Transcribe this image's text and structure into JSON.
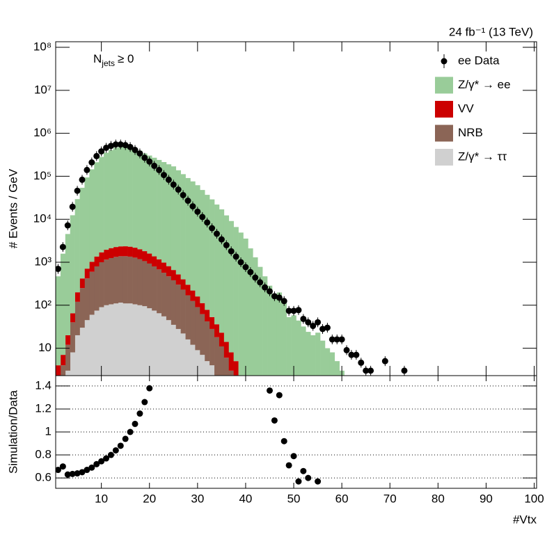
{
  "chart_data": [
    {
      "type": "histogram",
      "lumi_label": "24 fb⁻¹ (13 TeV)",
      "annotation": {
        "text": "N",
        "subscript": "jets",
        "suffix": "≥ 0"
      },
      "y_label": "# Events / GeV",
      "log_y": true,
      "legend": "top-right",
      "xlim": [
        0.5,
        100.5
      ],
      "xticks": [
        10,
        20,
        30,
        40,
        50,
        60,
        70,
        80,
        90,
        100
      ],
      "ylim": [
        2.3,
        135000000
      ],
      "yticks": [
        10,
        {
          "value": 100,
          "label": "10²"
        },
        {
          "value": 1000,
          "label": "10³"
        },
        {
          "value": 10000,
          "label": "10⁴"
        },
        {
          "value": 100000,
          "label": "10⁵"
        },
        {
          "value": 1000000,
          "label": "10⁶"
        },
        {
          "value": 10000000,
          "label": "10⁷"
        },
        {
          "value": 100000000,
          "label": "10⁸"
        }
      ],
      "x": [
        1,
        2,
        3,
        4,
        5,
        6,
        7,
        8,
        9,
        10,
        11,
        12,
        13,
        14,
        15,
        16,
        17,
        18,
        19,
        20,
        21,
        22,
        23,
        24,
        25,
        26,
        27,
        28,
        29,
        30,
        31,
        32,
        33,
        34,
        35,
        36,
        37,
        38,
        39,
        40,
        41,
        42,
        43,
        44,
        45,
        46,
        47,
        48,
        49,
        50,
        51,
        52,
        53,
        54,
        55,
        56,
        57,
        58,
        59,
        60
      ],
      "series": [
        {
          "name": "Z/γ* → ττ",
          "color": "#d0d0d0",
          "values": [
            1,
            2,
            3,
            8,
            20,
            30,
            45,
            60,
            75,
            90,
            100,
            105,
            110,
            115,
            110,
            110,
            105,
            100,
            95,
            85,
            75,
            65,
            55,
            45,
            35,
            28,
            22,
            16,
            12,
            9,
            7,
            5,
            4,
            2,
            1,
            0,
            0,
            0,
            0,
            0,
            0,
            0,
            0,
            0,
            0,
            0,
            0,
            0,
            0,
            0,
            0,
            0,
            0,
            0,
            0,
            0,
            0,
            0,
            0,
            0
          ]
        },
        {
          "name": "NRB",
          "color": "#8b6556",
          "values": [
            1,
            2,
            9,
            32,
            100,
            220,
            375,
            540,
            725,
            910,
            1050,
            1145,
            1220,
            1265,
            1270,
            1240,
            1175,
            1080,
            965,
            845,
            725,
            615,
            515,
            425,
            345,
            272,
            208,
            154,
            113,
            81,
            55,
            37,
            24,
            16,
            10,
            6,
            3,
            2,
            0,
            0,
            0,
            0,
            0,
            0,
            0,
            0,
            0,
            0,
            0,
            0,
            0,
            0,
            0,
            0,
            0,
            0,
            0,
            0,
            0,
            0
          ]
        },
        {
          "name": "VV",
          "color": "#cc0000",
          "values": [
            2,
            3,
            8,
            25,
            80,
            170,
            290,
            420,
            560,
            700,
            800,
            880,
            930,
            960,
            970,
            950,
            900,
            830,
            750,
            660,
            570,
            490,
            410,
            340,
            280,
            220,
            170,
            130,
            95,
            70,
            50,
            36,
            25,
            18,
            12,
            8,
            5,
            3,
            2,
            1,
            0,
            0,
            0,
            0,
            0,
            0,
            0,
            0,
            0,
            0,
            0,
            0,
            0,
            0,
            0,
            0,
            0,
            0,
            0,
            0
          ]
        },
        {
          "name": "Z/γ* → ee",
          "color": "#99cc99",
          "values": [
            466,
            1573,
            4520,
            12335,
            29200,
            53580,
            93290,
            143980,
            210640,
            281300,
            352050,
            405870,
            459740,
            481660,
            495650,
            477700,
            436820,
            391990,
            338190,
            302410,
            268600,
            238800,
            213000,
            189200,
            169300,
            137500,
            111600,
            90700,
            75800,
            61840,
            47890,
            36920,
            28950,
            21960,
            16980,
            12290,
            9090,
            6595,
            4898,
            3549,
            2100,
            1300,
            780,
            470,
            285,
            178,
            198,
            115,
            53,
            58,
            44,
            32,
            24,
            20,
            23,
            15,
            10,
            8,
            5,
            3
          ]
        },
        {
          "name": "ee Data",
          "color": "#000000",
          "style": "points",
          "x": [
            1,
            2,
            3,
            4,
            5,
            6,
            7,
            8,
            9,
            10,
            11,
            12,
            13,
            14,
            15,
            16,
            17,
            18,
            19,
            20,
            21,
            22,
            23,
            24,
            25,
            26,
            27,
            28,
            29,
            30,
            31,
            32,
            33,
            34,
            35,
            36,
            37,
            38,
            39,
            40,
            41,
            42,
            43,
            44,
            45,
            46,
            47,
            48,
            49,
            50,
            51,
            52,
            53,
            54,
            55,
            56,
            57,
            58,
            59,
            60,
            61,
            62,
            63,
            64,
            65,
            66,
            69,
            73
          ],
          "values": [
            700,
            2260,
            7200,
            19500,
            46000,
            83000,
            140000,
            210000,
            295000,
            380000,
            460000,
            510000,
            550000,
            550000,
            530000,
            480000,
            410000,
            340000,
            270000,
            220000,
            175000,
            140000,
            107000,
            83000,
            64000,
            49000,
            36500,
            27000,
            20000,
            15000,
            11300,
            8400,
            6200,
            4600,
            3400,
            2500,
            1800,
            1350,
            1000,
            770,
            590,
            440,
            340,
            260,
            210,
            162,
            150,
            125,
            74,
            74,
            77,
            48,
            40,
            33,
            40,
            28,
            30,
            16,
            16,
            16,
            9,
            7,
            7,
            4.6,
            3,
            3,
            5,
            3
          ]
        }
      ]
    },
    {
      "type": "scatter",
      "x_label": "#Vtx",
      "y_label": "Simulation/Data",
      "grid": true,
      "xlim": [
        0.5,
        100.5
      ],
      "xticks": [
        10,
        20,
        30,
        40,
        50,
        60,
        70,
        80,
        90,
        100
      ],
      "ylim": [
        0.51,
        1.49
      ],
      "yticks": [
        0.6,
        0.8,
        1,
        1.2,
        1.4
      ],
      "color": "#000000",
      "x": [
        1,
        2,
        3,
        4,
        5,
        6,
        7,
        8,
        9,
        10,
        11,
        12,
        13,
        14,
        15,
        16,
        17,
        18,
        19,
        20,
        45,
        46,
        47,
        48,
        49,
        50,
        51,
        52,
        53,
        55
      ],
      "values": [
        0.67,
        0.7,
        0.63,
        0.635,
        0.64,
        0.65,
        0.67,
        0.69,
        0.72,
        0.745,
        0.77,
        0.8,
        0.84,
        0.88,
        0.94,
        1.0,
        1.07,
        1.16,
        1.26,
        1.38,
        1.36,
        1.1,
        1.32,
        0.92,
        0.71,
        0.79,
        0.57,
        0.66,
        0.6,
        0.57
      ]
    }
  ]
}
